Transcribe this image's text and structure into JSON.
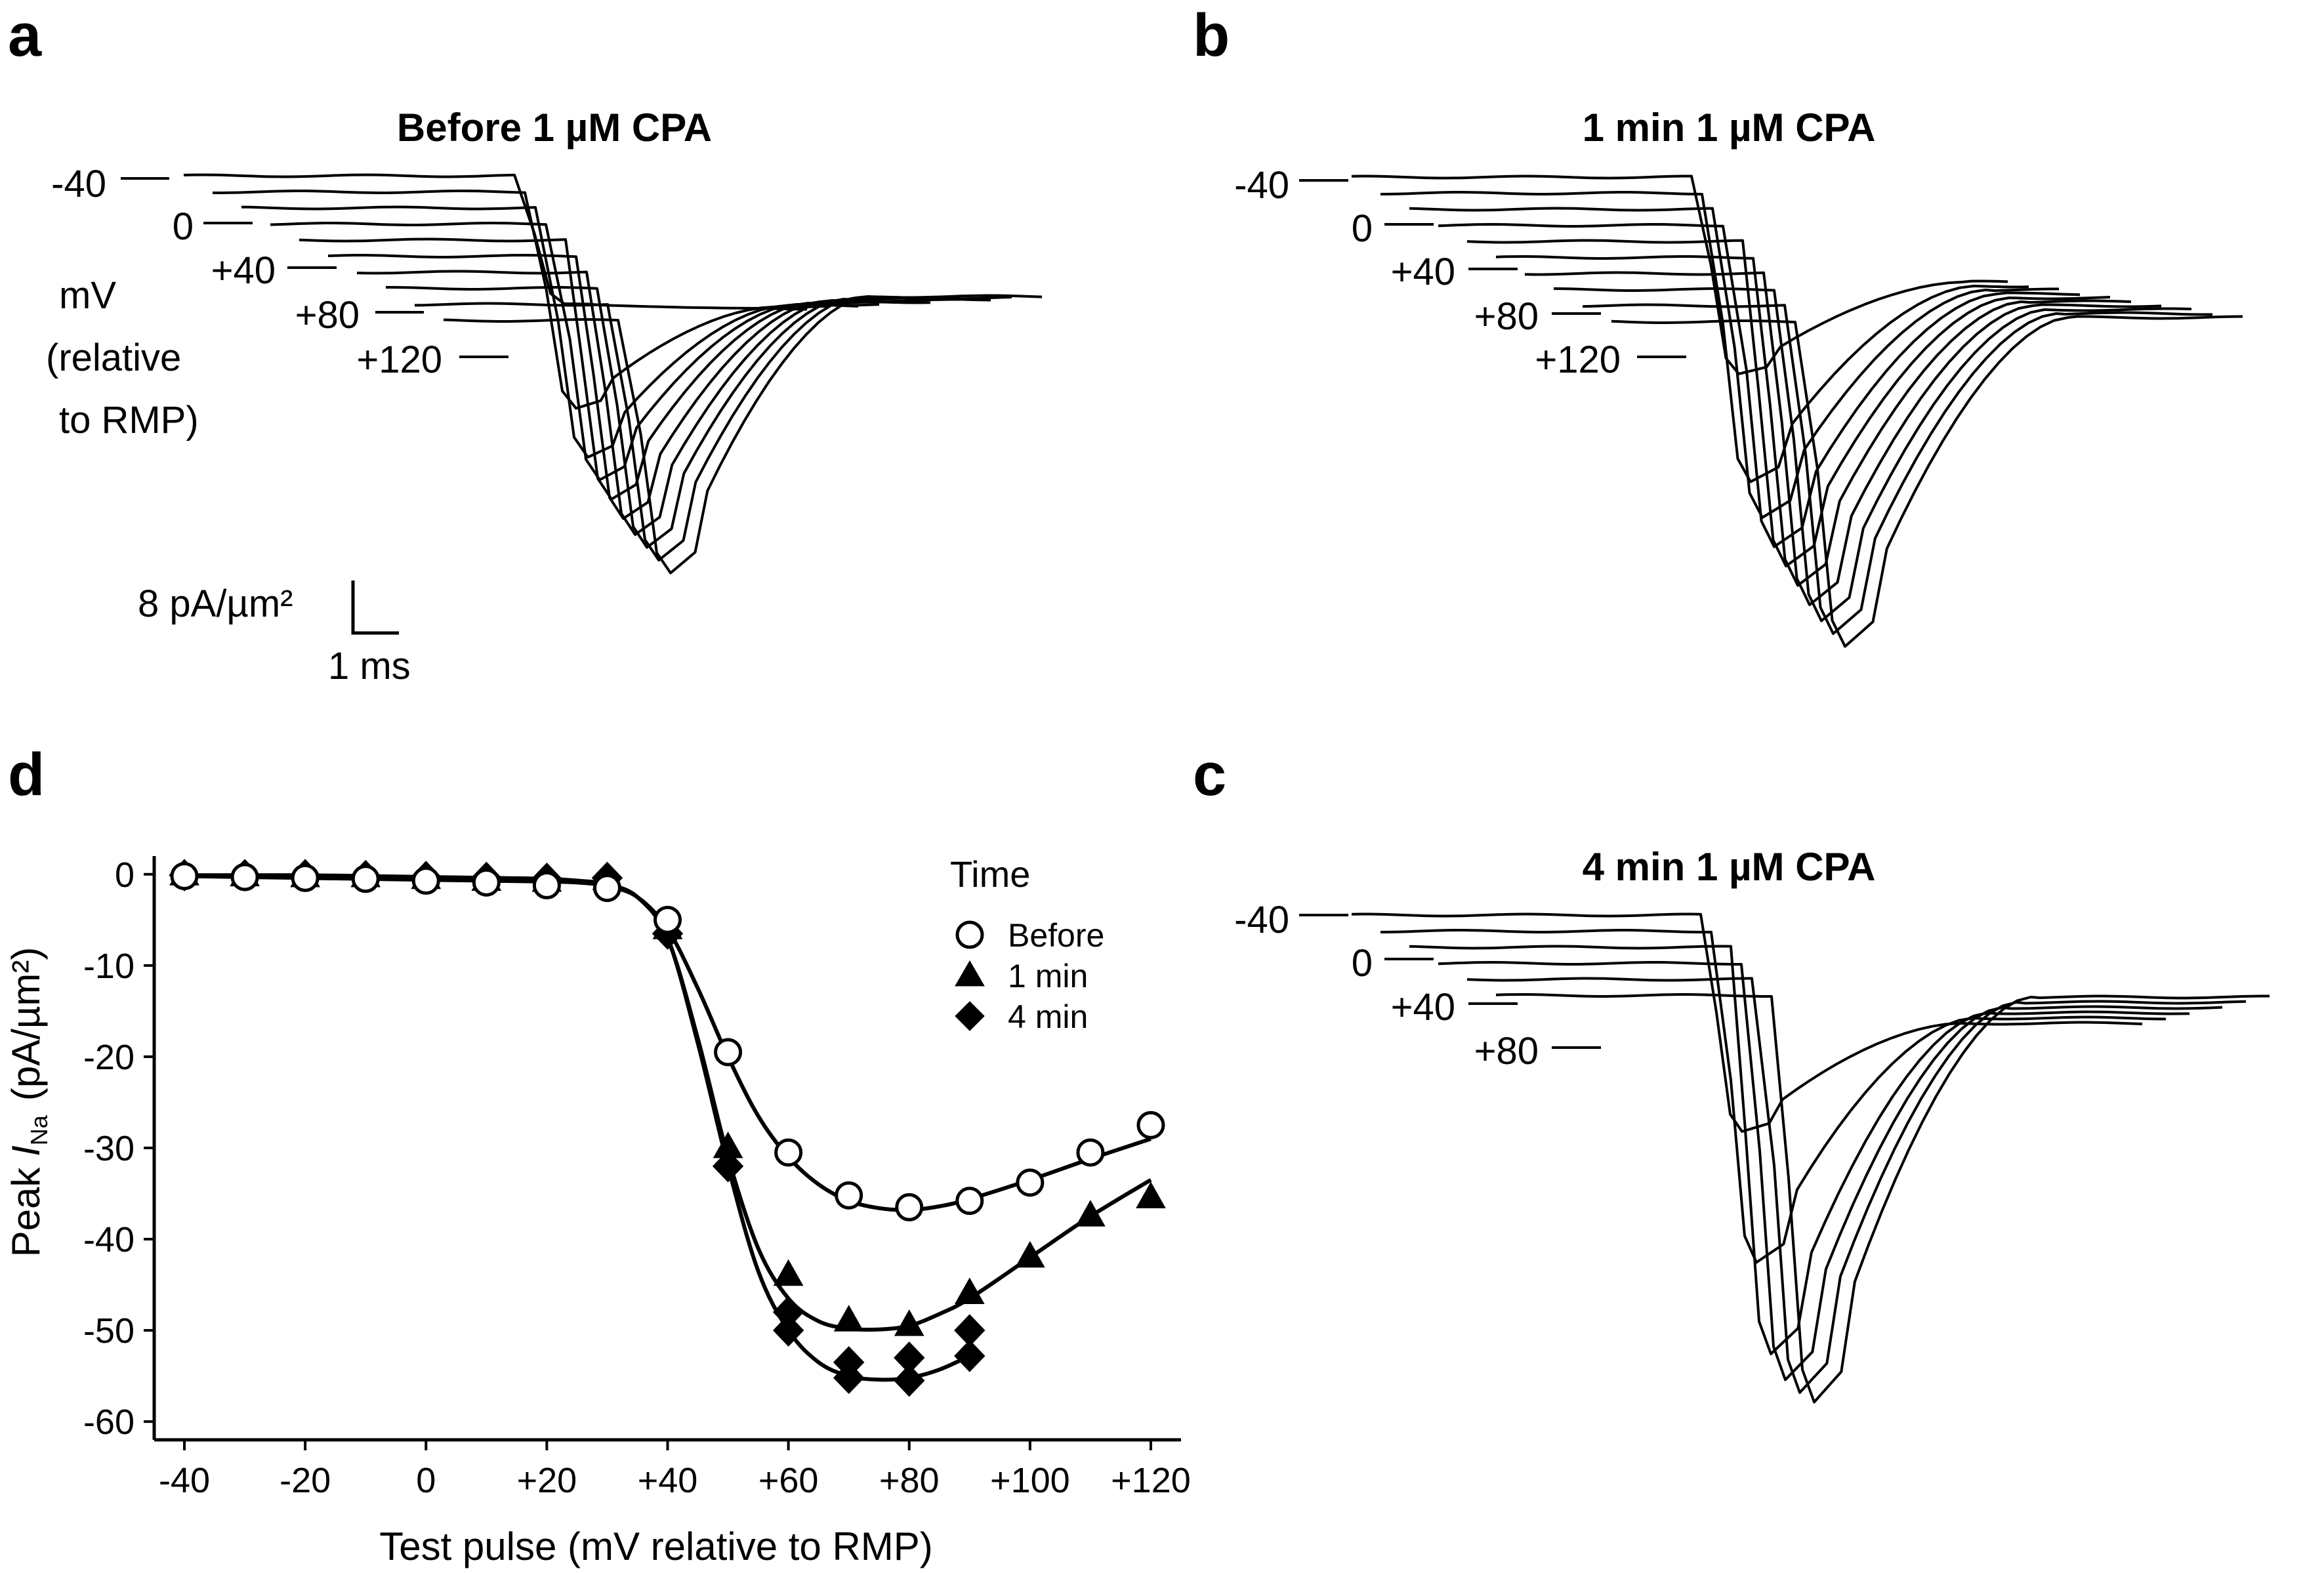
{
  "panels": {
    "a": {
      "letter": "a",
      "title": "Before 1 µM CPA",
      "voltage_labels": [
        "-40",
        "0",
        "+40",
        "+80",
        "+120"
      ],
      "units_label_lines": [
        "mV",
        "(relative",
        "to RMP)"
      ],
      "scale_bar": {
        "current": "8 pA/µm²",
        "time": "1 ms"
      }
    },
    "b": {
      "letter": "b",
      "title": "1 min 1 µM CPA",
      "voltage_labels": [
        "-40",
        "0",
        "+40",
        "+80",
        "+120"
      ]
    },
    "c": {
      "letter": "c",
      "title": "4 min 1 µM CPA",
      "voltage_labels": [
        "-40",
        "0",
        "+40",
        "+80"
      ]
    },
    "d": {
      "letter": "d"
    }
  },
  "chart_data": {
    "type": "scatter",
    "title": "",
    "xlabel": "Test pulse (mV relative to RMP)",
    "ylabel_prefix": "Peak ",
    "ylabel_italic": "I",
    "ylabel_subscript": "Na",
    "ylabel_units": "(pA/µm²)",
    "xlim": [
      -45,
      125
    ],
    "ylim": [
      -62,
      2
    ],
    "x_ticks": [
      -40,
      -20,
      0,
      20,
      40,
      60,
      80,
      100,
      120
    ],
    "x_tick_labels": [
      "-40",
      "-20",
      "0",
      "+20",
      "+40",
      "+60",
      "+80",
      "+100",
      "+120"
    ],
    "y_ticks": [
      0,
      -10,
      -20,
      -30,
      -40,
      -50,
      -60
    ],
    "y_tick_labels": [
      "0",
      "-10",
      "-20",
      "-30",
      "-40",
      "-50",
      "-60"
    ],
    "legend": {
      "title": "Time",
      "position": "top-right"
    },
    "series": [
      {
        "name": "Before",
        "marker": "open-circle",
        "x": [
          -40,
          -30,
          -20,
          -10,
          0,
          10,
          20,
          30,
          40,
          50,
          60,
          70,
          80,
          90,
          100,
          110,
          120
        ],
        "y": [
          -0.2,
          -0.3,
          -0.4,
          -0.5,
          -0.7,
          -0.9,
          -1.2,
          -1.5,
          -5.0,
          -19.5,
          -30.5,
          -35.2,
          -36.5,
          -35.8,
          -33.8,
          -30.5,
          -27.5
        ],
        "fit_x": [
          -40,
          -30,
          -20,
          -10,
          0,
          10,
          20,
          25,
          30,
          35,
          40,
          45,
          50,
          55,
          60,
          65,
          70,
          75,
          80,
          85,
          90,
          100,
          110,
          120
        ],
        "fit_y": [
          -0.2,
          -0.3,
          -0.4,
          -0.5,
          -0.6,
          -0.7,
          -0.8,
          -0.9,
          -1.3,
          -2.5,
          -6.0,
          -12.5,
          -20.0,
          -26.5,
          -31.0,
          -34.0,
          -35.8,
          -36.6,
          -36.8,
          -36.4,
          -35.6,
          -33.5,
          -31.2,
          -29.0
        ]
      },
      {
        "name": "1 min",
        "marker": "filled-triangle",
        "x": [
          -40,
          -30,
          -20,
          -10,
          0,
          10,
          20,
          30,
          40,
          50,
          60,
          70,
          80,
          90,
          100,
          110,
          120
        ],
        "y": [
          -0.1,
          -0.2,
          -0.3,
          -0.3,
          -0.5,
          -0.7,
          -0.8,
          -0.6,
          -6.0,
          -30.0,
          -44.0,
          -49.0,
          -49.5,
          -46.0,
          -42.0,
          -37.5,
          -35.5
        ],
        "fit_x": [
          -40,
          -30,
          -20,
          -10,
          0,
          10,
          20,
          25,
          30,
          35,
          40,
          45,
          50,
          55,
          60,
          65,
          70,
          75,
          80,
          85,
          90,
          100,
          110,
          120
        ],
        "fit_y": [
          -0.1,
          -0.2,
          -0.3,
          -0.3,
          -0.4,
          -0.5,
          -0.6,
          -0.8,
          -1.2,
          -2.5,
          -7.0,
          -18.0,
          -31.0,
          -41.0,
          -46.5,
          -49.0,
          -49.8,
          -49.9,
          -49.5,
          -48.2,
          -46.5,
          -42.0,
          -37.5,
          -33.5
        ]
      },
      {
        "name": "4 min",
        "marker": "filled-diamond",
        "x": [
          -40,
          -30,
          -20,
          -10,
          0,
          10,
          20,
          30,
          40,
          50,
          60,
          60,
          70,
          70,
          80,
          80,
          90,
          90
        ],
        "y": [
          -0.1,
          -0.1,
          -0.1,
          -0.2,
          -0.3,
          -0.4,
          -0.5,
          -0.4,
          -6.5,
          -32.0,
          -48.0,
          -50.0,
          -53.5,
          -55.2,
          -53.0,
          -55.5,
          -52.8,
          -50.0
        ],
        "fit_x": [
          -40,
          -30,
          -20,
          -10,
          0,
          10,
          20,
          25,
          30,
          35,
          40,
          45,
          50,
          55,
          60,
          65,
          70,
          75,
          80,
          85,
          90
        ],
        "fit_y": [
          -0.1,
          -0.1,
          -0.1,
          -0.2,
          -0.3,
          -0.4,
          -0.5,
          -0.7,
          -1.1,
          -2.5,
          -7.0,
          -18.5,
          -32.0,
          -43.5,
          -50.0,
          -53.5,
          -55.0,
          -55.4,
          -55.2,
          -54.3,
          -52.8
        ]
      }
    ]
  }
}
